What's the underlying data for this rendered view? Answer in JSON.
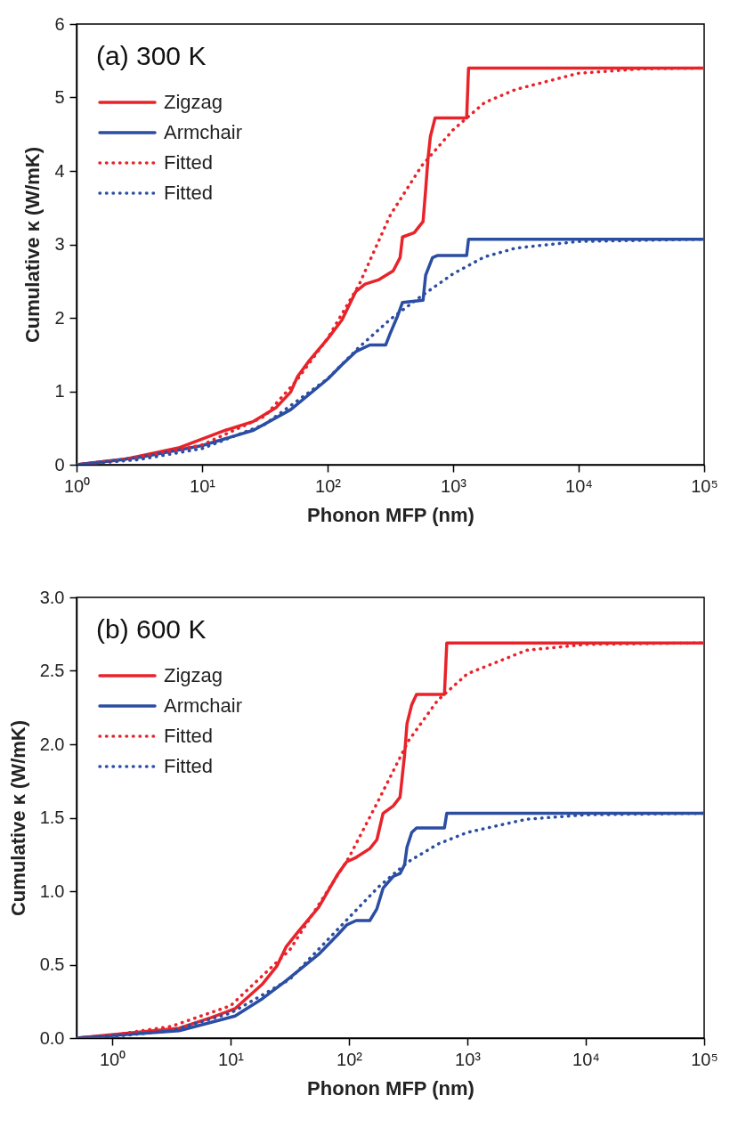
{
  "chart_data": [
    {
      "type": "line",
      "annotations": [
        "(a) 300 K"
      ],
      "xlabel": "Phonon MFP (nm)",
      "ylabel": "Cumulative κ (W/mK)",
      "log": "x",
      "legend": "top left",
      "marker": "none",
      "xlim": [
        1,
        100000
      ],
      "xticks": [
        {
          "value": 1,
          "label": "10⁰"
        },
        {
          "value": 10,
          "label": "10¹"
        },
        {
          "value": 100,
          "label": "10²"
        },
        {
          "value": 1000,
          "label": "10³"
        },
        {
          "value": 10000,
          "label": "10⁴"
        },
        {
          "value": 100000,
          "label": "10⁵"
        }
      ],
      "ylim": [
        0,
        6
      ],
      "yticks": [
        0,
        1,
        2,
        3,
        4,
        5,
        6
      ],
      "series": [
        {
          "name": "Zigzag",
          "color": "#e8232a",
          "line_style": "solid",
          "x": [
            1,
            2.35,
            6.5,
            10,
            15.4,
            25.7,
            39,
            50.8,
            57.6,
            71.6,
            100.7,
            130,
            168,
            199,
            257,
            333,
            378,
            395,
            490,
            576,
            604,
            631,
            659,
            718,
            1282,
            1327,
            100000
          ],
          "values": [
            0,
            0.07,
            0.23,
            0.35,
            0.47,
            0.59,
            0.78,
            0.99,
            1.2,
            1.42,
            1.72,
            1.97,
            2.36,
            2.46,
            2.52,
            2.64,
            2.82,
            3.1,
            3.16,
            3.31,
            3.74,
            4.17,
            4.47,
            4.72,
            4.72,
            5.4,
            5.4
          ]
        },
        {
          "name": "Armchair",
          "color": "#2b4ea2",
          "line_style": "solid",
          "x": [
            1,
            3.16,
            10,
            25.7,
            50.8,
            100.7,
            130,
            168,
            217,
            290,
            314,
            362,
            395,
            576,
            604,
            685,
            755,
            1282,
            1327,
            100000
          ],
          "values": [
            0,
            0.1,
            0.26,
            0.47,
            0.75,
            1.17,
            1.36,
            1.54,
            1.63,
            1.63,
            1.78,
            2.03,
            2.21,
            2.24,
            2.58,
            2.82,
            2.85,
            2.85,
            3.07,
            3.07
          ]
        },
        {
          "name": "Fitted",
          "color": "#e8232a",
          "line_style": "dotted",
          "x": [
            1,
            3.16,
            10,
            31.6,
            56.2,
            100,
            178,
            316,
            562,
            1000,
            1778,
            3162,
            10000,
            31623,
            100000
          ],
          "values": [
            0,
            0.1,
            0.27,
            0.66,
            1.14,
            1.72,
            2.45,
            3.4,
            4.07,
            4.56,
            4.93,
            5.11,
            5.33,
            5.39,
            5.4
          ]
        },
        {
          "name": "Fitted",
          "color": "#2b4ea2",
          "line_style": "dotted",
          "x": [
            1,
            3.16,
            10,
            31.6,
            100,
            178,
            316,
            562,
            1000,
            1778,
            3162,
            10000,
            100000
          ],
          "values": [
            0,
            0.07,
            0.22,
            0.55,
            1.17,
            1.6,
            1.98,
            2.3,
            2.6,
            2.83,
            2.95,
            3.04,
            3.07
          ]
        }
      ]
    },
    {
      "type": "line",
      "annotations": [
        "(b) 600 K"
      ],
      "xlabel": "Phonon MFP (nm)",
      "ylabel": "Cumulative κ (W/mK)",
      "log": "x",
      "legend": "top left",
      "marker": "none",
      "xlim": [
        0.5,
        100000
      ],
      "xticks": [
        {
          "value": 1,
          "label": "10⁰"
        },
        {
          "value": 10,
          "label": "10¹"
        },
        {
          "value": 100,
          "label": "10²"
        },
        {
          "value": 1000,
          "label": "10³"
        },
        {
          "value": 10000,
          "label": "10⁴"
        },
        {
          "value": 100000,
          "label": "10⁵"
        }
      ],
      "ylim": [
        0,
        3
      ],
      "yticks": [
        {
          "value": 0,
          "label": "0.0"
        },
        0.5,
        {
          "value": 1,
          "label": "1.0"
        },
        1.5,
        {
          "value": 2,
          "label": "2.0"
        },
        2.5,
        {
          "value": 3,
          "label": "3.0"
        }
      ],
      "series": [
        {
          "name": "Zigzag",
          "color": "#e8232a",
          "line_style": "solid",
          "x": [
            0.5,
            3.67,
            6.9,
            10.9,
            18.7,
            24.6,
            29.4,
            36.9,
            55.4,
            79.6,
            95.6,
            115,
            150,
            172,
            194,
            236,
            270,
            295,
            309,
            339,
            372,
            640,
            670,
            100000
          ],
          "values": [
            0,
            0.067,
            0.14,
            0.2,
            0.37,
            0.49,
            0.62,
            0.72,
            0.89,
            1.11,
            1.2,
            1.23,
            1.29,
            1.35,
            1.53,
            1.58,
            1.64,
            1.93,
            2.14,
            2.27,
            2.34,
            2.34,
            2.69,
            2.69
          ]
        },
        {
          "name": "Armchair",
          "color": "#2b4ea2",
          "line_style": "solid",
          "x": [
            0.5,
            3.67,
            10.9,
            18.7,
            29.4,
            55.4,
            79.6,
            95.6,
            115,
            150,
            172,
            194,
            236,
            270,
            295,
            309,
            339,
            372,
            640,
            670,
            100000
          ],
          "values": [
            0,
            0.05,
            0.15,
            0.27,
            0.39,
            0.57,
            0.7,
            0.77,
            0.8,
            0.8,
            0.88,
            1.02,
            1.1,
            1.12,
            1.18,
            1.3,
            1.4,
            1.43,
            1.43,
            1.53,
            1.53
          ]
        },
        {
          "name": "Fitted",
          "color": "#e8232a",
          "line_style": "dotted",
          "x": [
            0.5,
            1,
            3.16,
            10,
            31.6,
            100,
            178,
            316,
            562,
            1000,
            3162,
            10000,
            100000
          ],
          "values": [
            0,
            0.02,
            0.08,
            0.22,
            0.6,
            1.23,
            1.62,
            2.02,
            2.3,
            2.48,
            2.64,
            2.68,
            2.69
          ]
        },
        {
          "name": "Fitted",
          "color": "#2b4ea2",
          "line_style": "dotted",
          "x": [
            0.5,
            1,
            3.16,
            10,
            31.6,
            100,
            178,
            316,
            562,
            1000,
            3162,
            10000,
            100000
          ],
          "values": [
            0,
            0.01,
            0.05,
            0.17,
            0.4,
            0.82,
            1.03,
            1.2,
            1.32,
            1.4,
            1.49,
            1.52,
            1.53
          ]
        }
      ]
    }
  ]
}
